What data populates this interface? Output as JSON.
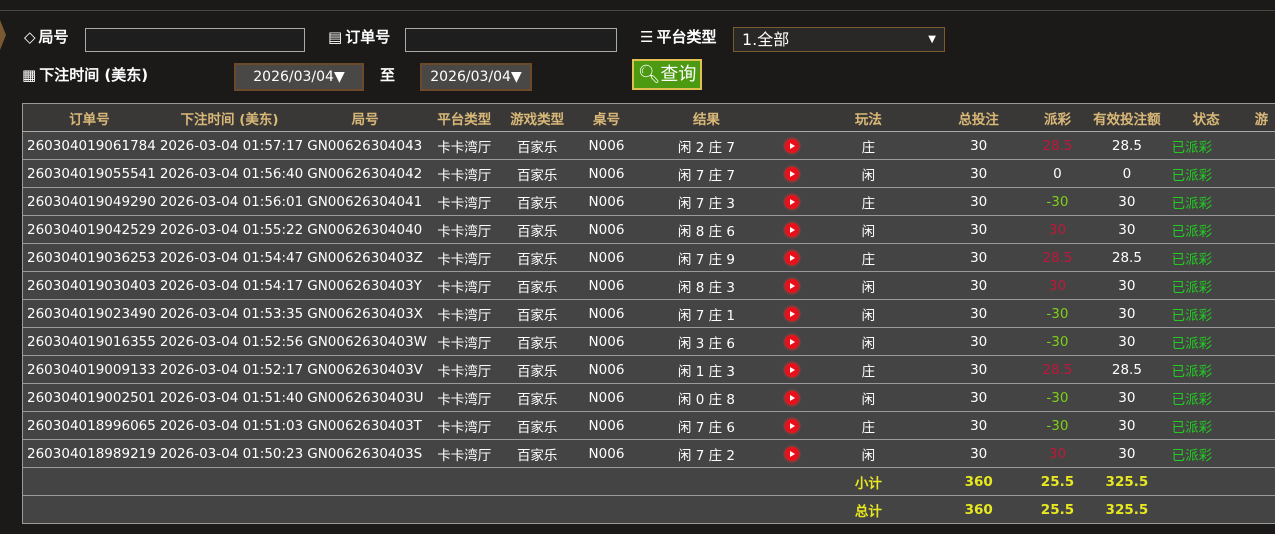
{
  "filters": {
    "round_label": "局号",
    "round_value": "",
    "order_label": "订单号",
    "order_value": "",
    "platform_label": "平台类型",
    "platform_value": "1.全部",
    "time_label": "下注时间 (美东)",
    "date_from": "2026/03/04▼",
    "to_label": "至",
    "date_to": "2026/03/04▼",
    "query_label": "查询"
  },
  "table": {
    "headers": [
      "订单号",
      "下注时间 (美东)",
      "局号",
      "平台类型",
      "游戏类型",
      "桌号",
      "结果",
      "",
      "玩法",
      "总投注",
      "派彩",
      "有效投注额",
      "状态",
      "游"
    ],
    "rows": [
      [
        "260304019061784",
        "2026-03-04 01:57:17",
        "GN00626304043",
        "卡卡湾厅",
        "百家乐",
        "N006",
        "闲 2 庄 7",
        "庄",
        "30",
        "28.5",
        "28.5",
        "已派彩",
        "red"
      ],
      [
        "260304019055541",
        "2026-03-04 01:56:40",
        "GN00626304042",
        "卡卡湾厅",
        "百家乐",
        "N006",
        "闲 7 庄 7",
        "闲",
        "30",
        "0",
        "0",
        "已派彩",
        ""
      ],
      [
        "260304019049290",
        "2026-03-04 01:56:01",
        "GN00626304041",
        "卡卡湾厅",
        "百家乐",
        "N006",
        "闲 7 庄 3",
        "庄",
        "30",
        "-30",
        "30",
        "已派彩",
        "grn"
      ],
      [
        "260304019042529",
        "2026-03-04 01:55:22",
        "GN00626304040",
        "卡卡湾厅",
        "百家乐",
        "N006",
        "闲 8 庄 6",
        "闲",
        "30",
        "30",
        "30",
        "已派彩",
        "red"
      ],
      [
        "260304019036253",
        "2026-03-04 01:54:47",
        "GN0062630403Z",
        "卡卡湾厅",
        "百家乐",
        "N006",
        "闲 7 庄 9",
        "庄",
        "30",
        "28.5",
        "28.5",
        "已派彩",
        "red"
      ],
      [
        "260304019030403",
        "2026-03-04 01:54:17",
        "GN0062630403Y",
        "卡卡湾厅",
        "百家乐",
        "N006",
        "闲 8 庄 3",
        "闲",
        "30",
        "30",
        "30",
        "已派彩",
        "red"
      ],
      [
        "260304019023490",
        "2026-03-04 01:53:35",
        "GN0062630403X",
        "卡卡湾厅",
        "百家乐",
        "N006",
        "闲 7 庄 1",
        "闲",
        "30",
        "-30",
        "30",
        "已派彩",
        "grn"
      ],
      [
        "260304019016355",
        "2026-03-04 01:52:56",
        "GN0062630403W",
        "卡卡湾厅",
        "百家乐",
        "N006",
        "闲 3 庄 6",
        "闲",
        "30",
        "-30",
        "30",
        "已派彩",
        "grn"
      ],
      [
        "260304019009133",
        "2026-03-04 01:52:17",
        "GN0062630403V",
        "卡卡湾厅",
        "百家乐",
        "N006",
        "闲 1 庄 3",
        "庄",
        "30",
        "28.5",
        "28.5",
        "已派彩",
        "red"
      ],
      [
        "260304019002501",
        "2026-03-04 01:51:40",
        "GN0062630403U",
        "卡卡湾厅",
        "百家乐",
        "N006",
        "闲 0 庄 8",
        "闲",
        "30",
        "-30",
        "30",
        "已派彩",
        "grn"
      ],
      [
        "260304018996065",
        "2026-03-04 01:51:03",
        "GN0062630403T",
        "卡卡湾厅",
        "百家乐",
        "N006",
        "闲 7 庄 6",
        "庄",
        "30",
        "-30",
        "30",
        "已派彩",
        "grn"
      ],
      [
        "260304018989219",
        "2026-03-04 01:50:23",
        "GN0062630403S",
        "卡卡湾厅",
        "百家乐",
        "N006",
        "闲 7 庄 2",
        "闲",
        "30",
        "30",
        "30",
        "已派彩",
        "red"
      ]
    ],
    "subtotal": {
      "label": "小计",
      "bet": "360",
      "payout": "25.5",
      "valid": "325.5"
    },
    "total": {
      "label": "总计",
      "bet": "360",
      "payout": "25.5",
      "valid": "325.5"
    }
  },
  "colors": {
    "header_text": "#d8b878",
    "win": "#c0183a",
    "loss": "#7ccf1a",
    "status": "#22cc22",
    "total": "#e8e820",
    "query_button": "#4c9a12"
  }
}
